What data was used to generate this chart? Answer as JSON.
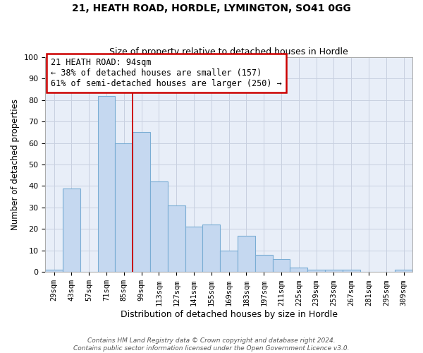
{
  "title1": "21, HEATH ROAD, HORDLE, LYMINGTON, SO41 0GG",
  "title2": "Size of property relative to detached houses in Hordle",
  "xlabel": "Distribution of detached houses by size in Hordle",
  "ylabel": "Number of detached properties",
  "categories": [
    "29sqm",
    "43sqm",
    "57sqm",
    "71sqm",
    "85sqm",
    "99sqm",
    "113sqm",
    "127sqm",
    "141sqm",
    "155sqm",
    "169sqm",
    "183sqm",
    "197sqm",
    "211sqm",
    "225sqm",
    "239sqm",
    "253sqm",
    "267sqm",
    "281sqm",
    "295sqm",
    "309sqm"
  ],
  "values": [
    1,
    39,
    0,
    82,
    60,
    65,
    42,
    31,
    21,
    22,
    10,
    17,
    8,
    6,
    2,
    1,
    1,
    1,
    0,
    0,
    1
  ],
  "bar_color": "#c5d8f0",
  "bar_edge_color": "#7aadd4",
  "grid_color": "#c8d0e0",
  "bg_color": "#e8eef8",
  "vline_x": 4.5,
  "annotation_text": "21 HEATH ROAD: 94sqm\n← 38% of detached houses are smaller (157)\n61% of semi-detached houses are larger (250) →",
  "annotation_box_color": "white",
  "annotation_box_edge": "#cc0000",
  "footer": "Contains HM Land Registry data © Crown copyright and database right 2024.\nContains public sector information licensed under the Open Government Licence v3.0.",
  "ylim": [
    0,
    100
  ],
  "yticks": [
    0,
    10,
    20,
    30,
    40,
    50,
    60,
    70,
    80,
    90,
    100
  ]
}
